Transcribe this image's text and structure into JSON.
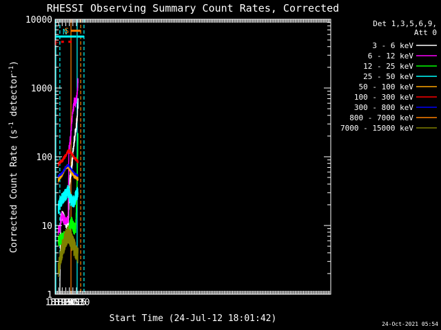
{
  "chart_data": {
    "type": "line",
    "title": "RHESSI Observing Summary Count Rates, Corrected",
    "xlabel": "Start Time (24-Jul-12 18:01:42)",
    "ylabel_base": "Corrected Count Rate (s",
    "ylabel_sup1": "-1",
    "ylabel_mid": " detector",
    "ylabel_sup2": "-1",
    "ylabel_end": ")",
    "yscale": "log",
    "ylim": [
      1,
      10000
    ],
    "xlim_minutes": [
      18.0,
      37.25
    ],
    "x_ticks": [
      "18:15",
      "18:30",
      "18:45",
      "19:00",
      "19:15",
      "19:30"
    ],
    "y_ticks": [
      "1",
      "10",
      "100",
      "1000",
      "10000"
    ],
    "legend_title_1": "Det 1,3,5,6,9,",
    "legend_title_2": "Att 0",
    "legend_position": "top-right",
    "timestamp": "24-Oct-2021 05:54",
    "bars": [
      {
        "label": "N",
        "color": "#00ffff",
        "segments": [
          [
            18.03,
            18.9
          ],
          [
            19.33,
            19.62
          ]
        ],
        "level": 5600
      },
      {
        "label": "F",
        "color": "#ff0000",
        "segments": [
          [
            18.26,
            18.37
          ],
          [
            18.56,
            18.7
          ]
        ],
        "level": 4700
      },
      {
        "label": "S",
        "color": "#ff8000",
        "segments": [
          [
            19.07,
            19.48
          ]
        ],
        "level": 6800
      }
    ],
    "vlines": [
      {
        "x": 18.03,
        "color": "#00ffff",
        "style": "solid"
      },
      {
        "x": 18.2,
        "color": "#00ffff",
        "style": "dashed"
      },
      {
        "x": 19.07,
        "color": "#ff8000",
        "style": "solid"
      },
      {
        "x": 19.33,
        "color": "#00ffff",
        "style": "solid"
      },
      {
        "x": 19.48,
        "color": "#ff8000",
        "style": "dashed"
      },
      {
        "x": 19.62,
        "color": "#00ffff",
        "style": "dashed"
      }
    ],
    "series": [
      {
        "name": "3 - 6 keV",
        "color": "#ffffff",
        "noise": 0.08,
        "points": [
          [
            18.205,
            1
          ],
          [
            18.23,
            12
          ],
          [
            18.3,
            14
          ],
          [
            18.45,
            11
          ],
          [
            18.545,
            10
          ],
          [
            18.56,
            11
          ],
          [
            18.62,
            45
          ],
          [
            18.7,
            70
          ],
          [
            18.78,
            140
          ],
          [
            18.87,
            250
          ],
          [
            18.93,
            350
          ],
          [
            18.97,
            600
          ]
        ]
      },
      {
        "name": "6 - 12 keV",
        "color": "#ff00ff",
        "noise": 0.07,
        "points": [
          [
            18.13,
            8.5
          ],
          [
            18.2,
            9
          ],
          [
            18.28,
            14
          ],
          [
            18.38,
            12
          ],
          [
            18.545,
            12
          ],
          [
            18.58,
            120
          ],
          [
            18.66,
            200
          ],
          [
            18.74,
            450
          ],
          [
            18.82,
            650
          ],
          [
            18.88,
            600
          ],
          [
            18.93,
            800
          ],
          [
            18.97,
            1300
          ]
        ]
      },
      {
        "name": "12 - 25 keV",
        "color": "#00ff00",
        "noise": 0.09,
        "points": [
          [
            18.13,
            6
          ],
          [
            18.3,
            6.5
          ],
          [
            18.45,
            7
          ],
          [
            18.55,
            7.5
          ],
          [
            18.62,
            10
          ],
          [
            18.7,
            11
          ],
          [
            18.8,
            9
          ],
          [
            18.87,
            9
          ],
          [
            18.93,
            40
          ],
          [
            18.97,
            200
          ]
        ]
      },
      {
        "name": "25 - 50 keV",
        "color": "#00ffff",
        "noise": 0.1,
        "points": [
          [
            18.13,
            18
          ],
          [
            18.3,
            25
          ],
          [
            18.45,
            28
          ],
          [
            18.55,
            32
          ],
          [
            18.65,
            24
          ],
          [
            18.8,
            22
          ],
          [
            18.9,
            28
          ],
          [
            18.97,
            30
          ]
        ]
      },
      {
        "name": "50 - 100 keV",
        "color": "#ffa500",
        "noise": 0.03,
        "points": [
          [
            18.13,
            45
          ],
          [
            18.3,
            55
          ],
          [
            18.45,
            70
          ],
          [
            18.55,
            72
          ],
          [
            18.65,
            62
          ],
          [
            18.8,
            52
          ],
          [
            18.97,
            48
          ]
        ]
      },
      {
        "name": "100 - 300 keV",
        "color": "#ff0000",
        "noise": 0.03,
        "points": [
          [
            18.13,
            78
          ],
          [
            18.3,
            88
          ],
          [
            18.45,
            105
          ],
          [
            18.55,
            122
          ],
          [
            18.65,
            118
          ],
          [
            18.8,
            98
          ],
          [
            18.97,
            85
          ]
        ]
      },
      {
        "name": "300 - 800 keV",
        "color": "#0000ff",
        "noise": 0.02,
        "points": [
          [
            18.13,
            52
          ],
          [
            18.3,
            58
          ],
          [
            18.45,
            70
          ],
          [
            18.55,
            76
          ],
          [
            18.65,
            68
          ],
          [
            18.8,
            58
          ],
          [
            18.97,
            53
          ]
        ]
      },
      {
        "name": "800 - 7000 keV",
        "color": "#ff8000",
        "noise": 0,
        "points": []
      },
      {
        "name": "7000 - 15000 keV",
        "color": "#808000",
        "noise": 0.14,
        "points": [
          [
            18.13,
            2.2
          ],
          [
            18.3,
            4.5
          ],
          [
            18.45,
            6.5
          ],
          [
            18.55,
            7.5
          ],
          [
            18.65,
            6.5
          ],
          [
            18.8,
            4.8
          ],
          [
            18.97,
            3.5
          ]
        ]
      }
    ]
  }
}
